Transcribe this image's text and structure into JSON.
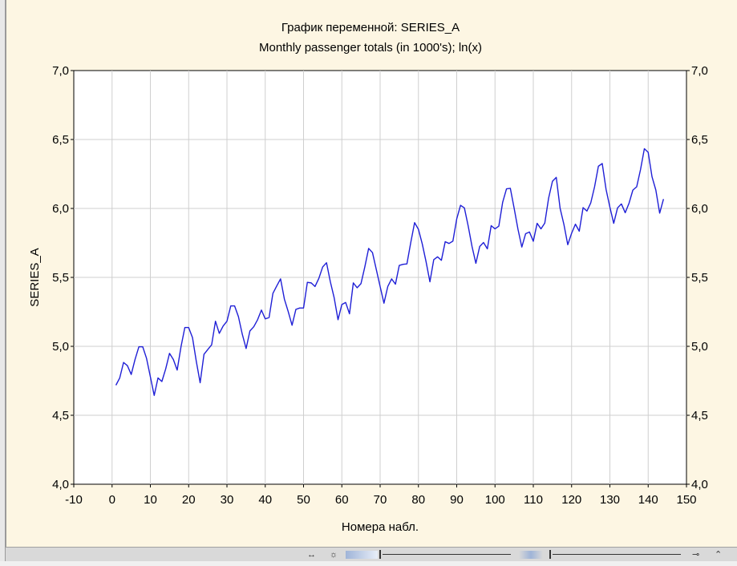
{
  "chart_data": {
    "type": "line",
    "title": "График переменной: SERIES_A",
    "subtitle": "Monthly passenger totals (in 1000's); ln(x)",
    "xlabel": "Номера набл.",
    "ylabel": "SERIES_A",
    "xlim": [
      -10,
      150
    ],
    "ylim": [
      4.0,
      7.0
    ],
    "x_ticks": [
      "-10",
      "0",
      "10",
      "20",
      "30",
      "40",
      "50",
      "60",
      "70",
      "80",
      "90",
      "100",
      "110",
      "120",
      "130",
      "140",
      "150"
    ],
    "y_ticks": [
      "4,0",
      "4,5",
      "5,0",
      "5,5",
      "6,0",
      "6,5",
      "7,0"
    ],
    "grid": true,
    "series": [
      {
        "color": "#1f1fd6",
        "x_start": 1,
        "values": [
          4.718,
          4.771,
          4.883,
          4.86,
          4.796,
          4.905,
          4.997,
          4.997,
          4.913,
          4.779,
          4.644,
          4.771,
          4.745,
          4.836,
          4.949,
          4.905,
          4.828,
          4.997,
          5.136,
          5.136,
          5.063,
          4.89,
          4.736,
          4.942,
          4.977,
          5.011,
          5.182,
          5.094,
          5.147,
          5.182,
          5.293,
          5.293,
          5.215,
          5.088,
          4.984,
          5.112,
          5.142,
          5.193,
          5.263,
          5.199,
          5.209,
          5.384,
          5.438,
          5.489,
          5.342,
          5.252,
          5.153,
          5.268,
          5.278,
          5.278,
          5.464,
          5.46,
          5.434,
          5.493,
          5.576,
          5.606,
          5.468,
          5.352,
          5.193,
          5.303,
          5.318,
          5.236,
          5.46,
          5.425,
          5.455,
          5.576,
          5.71,
          5.68,
          5.557,
          5.434,
          5.313,
          5.434,
          5.489,
          5.451,
          5.587,
          5.595,
          5.598,
          5.753,
          5.897,
          5.849,
          5.743,
          5.613,
          5.468,
          5.628,
          5.649,
          5.624,
          5.759,
          5.746,
          5.763,
          5.924,
          6.023,
          6.004,
          5.872,
          5.724,
          5.602,
          5.724,
          5.753,
          5.707,
          5.875,
          5.852,
          5.872,
          6.045,
          6.142,
          6.146,
          6.001,
          5.849,
          5.72,
          5.817,
          5.829,
          5.762,
          5.892,
          5.852,
          5.894,
          6.075,
          6.197,
          6.225,
          6.001,
          5.883,
          5.737,
          5.82,
          5.886,
          5.835,
          6.006,
          5.981,
          6.04,
          6.157,
          6.306,
          6.326,
          6.138,
          6.009,
          5.892,
          6.004,
          6.033,
          5.969,
          6.038,
          6.133,
          6.157,
          6.282,
          6.433,
          6.407,
          6.23,
          6.133,
          5.966,
          6.068
        ]
      }
    ]
  }
}
